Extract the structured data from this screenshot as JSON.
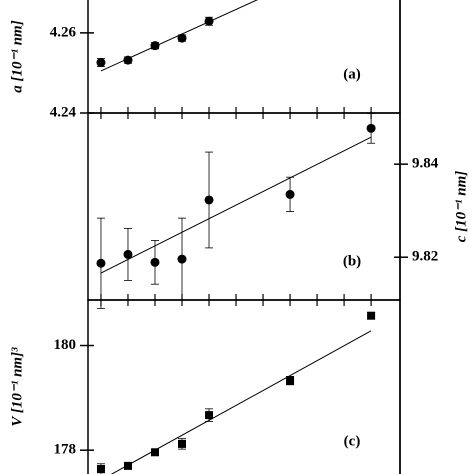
{
  "chart_data": [
    {
      "type": "scatter",
      "panel_label": "(a)",
      "ylabel": "a [10⁻¹ nm]",
      "yaxis": "left",
      "marker": "circle",
      "x": [
        1,
        2,
        3,
        4,
        5,
        8,
        11
      ],
      "values": [
        4.2526,
        4.2532,
        4.2568,
        4.2587,
        4.2629,
        null,
        null
      ],
      "errors": [
        0.001,
        0.0008,
        0.0008,
        0.0008,
        0.001,
        null,
        null
      ],
      "fit_x": [
        1,
        7.26
      ],
      "fit_values": [
        4.2505,
        4.2697
      ],
      "xlim": [
        0.52,
        12.07
      ],
      "xticks": [
        1,
        2,
        3,
        4,
        5,
        6,
        7,
        8,
        9,
        10,
        11
      ],
      "ylim": [
        4.24,
        4.2697
      ],
      "yticks": [
        4.24,
        4.26
      ]
    },
    {
      "type": "scatter",
      "panel_label": "(b)",
      "ylabel": "c [10⁻¹ nm]",
      "yaxis": "right",
      "marker": "circle",
      "x": [
        1,
        2,
        3,
        4,
        5,
        8,
        11
      ],
      "values": [
        9.8187,
        9.8206,
        9.8189,
        9.8196,
        9.8323,
        9.8335,
        9.8477
      ],
      "errors": [
        0.0097,
        0.0056,
        0.0047,
        0.0088,
        0.0103,
        0.0037,
        0.0032
      ],
      "fit_x": [
        1,
        11
      ],
      "fit_values": [
        9.8166,
        9.8458
      ],
      "xlim": [
        0.52,
        12.07
      ],
      "xticks": [
        1,
        2,
        3,
        4,
        5,
        6,
        7,
        8,
        9,
        10,
        11
      ],
      "ylim": [
        9.8108,
        9.851
      ],
      "yticks": [
        9.82,
        9.84
      ]
    },
    {
      "type": "scatter",
      "panel_label": "(c)",
      "ylabel": "V [10⁻¹ nm]³",
      "yaxis": "left",
      "marker": "square",
      "x": [
        1,
        2,
        3,
        4,
        5,
        8,
        11
      ],
      "values": [
        177.64,
        177.7,
        177.96,
        178.12,
        178.67,
        179.33,
        180.57
      ],
      "errors": [
        0.1,
        0.06,
        0.06,
        0.1,
        0.12,
        0.08,
        0.06
      ],
      "fit_x": [
        1,
        11
      ],
      "fit_values": [
        177.43,
        180.28
      ],
      "xlim": [
        0.52,
        12.07
      ],
      "xticks": [
        1,
        2,
        3,
        4,
        5,
        6,
        7,
        8,
        9,
        10,
        11
      ],
      "ylim": [
        177.43,
        180.87
      ],
      "yticks": [
        178,
        180
      ]
    }
  ]
}
